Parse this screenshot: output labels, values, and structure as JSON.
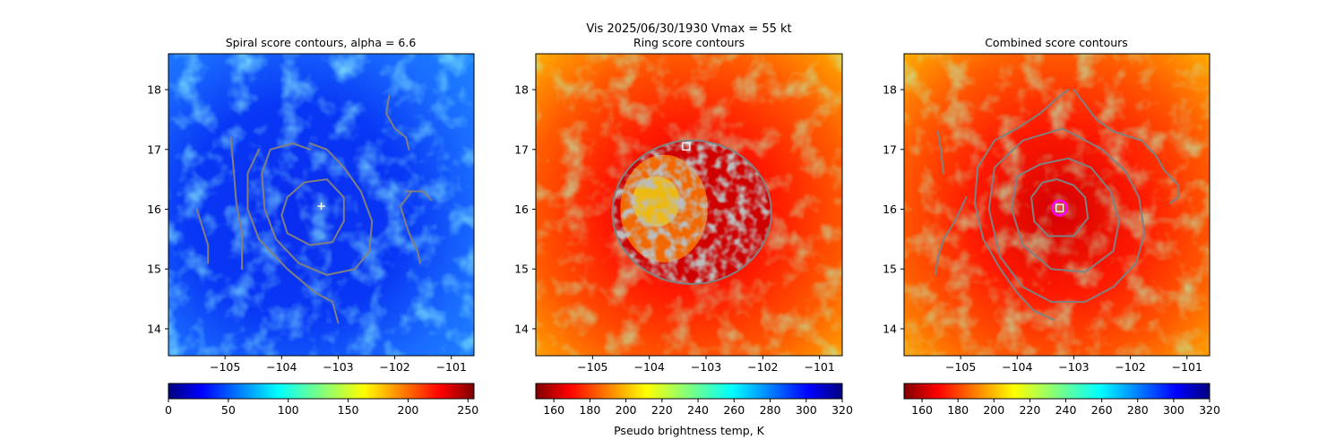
{
  "figure": {
    "suptitle_line1": "Vis  2025/06/30/1930    Vmax = 55 kt"
  },
  "colors": {
    "contour": "#808080",
    "spiral_marker": "#ffffff",
    "ring_marker": "#ffffff",
    "combined_ring": "#ff00ff",
    "combined_marker": "#ff4040"
  },
  "chart_data": [
    {
      "type": "heatmap",
      "title": "Spiral score contours, alpha =  6.6",
      "colormap": "jet",
      "xlim": [
        -106.0,
        -100.6
      ],
      "ylim": [
        13.55,
        18.6
      ],
      "xticks": [
        -105,
        -104,
        -103,
        -102,
        -101
      ],
      "yticks": [
        14,
        15,
        16,
        17,
        18
      ],
      "colorbar": {
        "min": 0,
        "max": 255,
        "ticks": [
          0,
          50,
          100,
          150,
          200,
          250
        ],
        "label": ""
      },
      "marker": {
        "shape": "plus",
        "x": -103.3,
        "y": 16.05
      },
      "contours": [
        [
          [
            -103.9,
            16.2
          ],
          [
            -103.6,
            16.45
          ],
          [
            -103.2,
            16.5
          ],
          [
            -102.9,
            16.2
          ],
          [
            -102.9,
            15.8
          ],
          [
            -103.1,
            15.45
          ],
          [
            -103.5,
            15.4
          ],
          [
            -103.9,
            15.6
          ],
          [
            -104.0,
            15.9
          ],
          [
            -103.9,
            16.2
          ]
        ],
        [
          [
            -103.5,
            17.0
          ],
          [
            -103.8,
            17.1
          ],
          [
            -104.2,
            17.0
          ],
          [
            -104.35,
            16.6
          ],
          [
            -104.3,
            16.0
          ],
          [
            -104.1,
            15.5
          ],
          [
            -103.7,
            15.1
          ],
          [
            -103.2,
            14.9
          ],
          [
            -102.7,
            15.0
          ],
          [
            -102.45,
            15.3
          ],
          [
            -102.4,
            15.8
          ],
          [
            -102.6,
            16.3
          ],
          [
            -102.9,
            16.7
          ],
          [
            -103.2,
            17.0
          ],
          [
            -103.5,
            17.1
          ]
        ],
        [
          [
            -104.4,
            17.0
          ],
          [
            -104.6,
            16.6
          ],
          [
            -104.6,
            16.0
          ],
          [
            -104.4,
            15.5
          ],
          [
            -103.9,
            15.0
          ],
          [
            -103.4,
            14.6
          ],
          [
            -103.1,
            14.45
          ],
          [
            -103.0,
            14.1
          ]
        ],
        [
          [
            -104.9,
            17.2
          ],
          [
            -104.85,
            16.7
          ],
          [
            -104.8,
            16.1
          ],
          [
            -104.7,
            15.6
          ],
          [
            -104.7,
            15.0
          ]
        ],
        [
          [
            -105.5,
            16.0
          ],
          [
            -105.4,
            15.7
          ],
          [
            -105.3,
            15.4
          ],
          [
            -105.3,
            15.1
          ]
        ],
        [
          [
            -102.1,
            17.9
          ],
          [
            -102.15,
            17.6
          ],
          [
            -102.0,
            17.35
          ],
          [
            -101.8,
            17.2
          ],
          [
            -101.75,
            17.0
          ]
        ],
        [
          [
            -101.7,
            16.3
          ],
          [
            -101.9,
            16.05
          ],
          [
            -101.75,
            15.6
          ],
          [
            -101.6,
            15.3
          ],
          [
            -101.55,
            15.1
          ]
        ],
        [
          [
            -101.8,
            16.3
          ],
          [
            -101.5,
            16.3
          ],
          [
            -101.35,
            16.15
          ]
        ]
      ]
    },
    {
      "type": "heatmap",
      "title": "Ring score contours",
      "colormap": "jet_r",
      "xlim": [
        -106.0,
        -100.6
      ],
      "ylim": [
        13.55,
        18.6
      ],
      "xticks": [
        -105,
        -104,
        -103,
        -102,
        -101
      ],
      "yticks": [
        14,
        15,
        16,
        17,
        18
      ],
      "colorbar": {
        "min": 150,
        "max": 320,
        "ticks": [
          160,
          180,
          200,
          220,
          240,
          260,
          280,
          300,
          320
        ],
        "label": "Pseudo brightness temp, K"
      },
      "marker": {
        "shape": "square",
        "x": -103.35,
        "y": 17.05
      },
      "ring_region": {
        "cx": -103.25,
        "cy": 15.95,
        "rx": 1.4,
        "ry": 1.2
      }
    },
    {
      "type": "heatmap",
      "title": "Combined score contours",
      "colormap": "jet_r",
      "xlim": [
        -106.0,
        -100.6
      ],
      "ylim": [
        13.55,
        18.6
      ],
      "xticks": [
        -105,
        -104,
        -103,
        -102,
        -101
      ],
      "yticks": [
        14,
        15,
        16,
        17,
        18
      ],
      "colorbar": {
        "min": 150,
        "max": 320,
        "ticks": [
          160,
          180,
          200,
          220,
          240,
          260,
          280,
          300,
          320
        ],
        "label": ""
      },
      "marker": {
        "shape": "square",
        "x": -103.25,
        "y": 16.02
      },
      "center_ring": {
        "x": -103.25,
        "y": 16.02,
        "r": 0.13
      },
      "contours": [
        [
          [
            -103.55,
            16.45
          ],
          [
            -103.75,
            16.2
          ],
          [
            -103.7,
            15.8
          ],
          [
            -103.45,
            15.55
          ],
          [
            -103.0,
            15.55
          ],
          [
            -102.75,
            15.85
          ],
          [
            -102.8,
            16.2
          ],
          [
            -103.0,
            16.4
          ],
          [
            -103.3,
            16.5
          ],
          [
            -103.55,
            16.45
          ]
        ],
        [
          [
            -103.6,
            16.75
          ],
          [
            -104.0,
            16.55
          ],
          [
            -104.1,
            16.0
          ],
          [
            -103.9,
            15.4
          ],
          [
            -103.4,
            15.0
          ],
          [
            -102.8,
            14.95
          ],
          [
            -102.3,
            15.3
          ],
          [
            -102.2,
            15.8
          ],
          [
            -102.35,
            16.3
          ],
          [
            -102.7,
            16.7
          ],
          [
            -103.1,
            16.85
          ],
          [
            -103.6,
            16.75
          ]
        ],
        [
          [
            -103.2,
            17.35
          ],
          [
            -103.9,
            17.15
          ],
          [
            -104.4,
            16.7
          ],
          [
            -104.5,
            16.0
          ],
          [
            -104.3,
            15.2
          ],
          [
            -103.9,
            14.7
          ],
          [
            -103.4,
            14.45
          ],
          [
            -102.8,
            14.45
          ],
          [
            -102.3,
            14.7
          ],
          [
            -101.9,
            15.1
          ],
          [
            -101.75,
            15.6
          ],
          [
            -101.85,
            16.2
          ],
          [
            -102.1,
            16.65
          ],
          [
            -102.5,
            17.0
          ],
          [
            -102.9,
            17.2
          ],
          [
            -103.2,
            17.35
          ]
        ],
        [
          [
            -103.0,
            18.0
          ],
          [
            -102.8,
            17.75
          ],
          [
            -102.6,
            17.5
          ],
          [
            -102.3,
            17.3
          ],
          [
            -101.8,
            17.15
          ],
          [
            -101.55,
            16.9
          ],
          [
            -101.4,
            16.65
          ],
          [
            -101.15,
            16.4
          ],
          [
            -101.15,
            16.2
          ],
          [
            -101.3,
            16.1
          ]
        ],
        [
          [
            -103.1,
            18.0
          ],
          [
            -103.3,
            17.85
          ],
          [
            -103.6,
            17.6
          ],
          [
            -104.0,
            17.35
          ],
          [
            -104.4,
            17.15
          ],
          [
            -104.7,
            16.7
          ],
          [
            -104.75,
            16.1
          ],
          [
            -104.6,
            15.5
          ],
          [
            -104.3,
            15.0
          ],
          [
            -104.0,
            14.6
          ],
          [
            -103.7,
            14.3
          ],
          [
            -103.35,
            14.15
          ]
        ],
        [
          [
            -104.9,
            16.2
          ],
          [
            -105.1,
            15.8
          ],
          [
            -105.3,
            15.5
          ],
          [
            -105.4,
            15.2
          ],
          [
            -105.45,
            14.9
          ]
        ],
        [
          [
            -105.3,
            16.6
          ],
          [
            -105.35,
            17.0
          ],
          [
            -105.4,
            17.3
          ]
        ]
      ]
    }
  ]
}
